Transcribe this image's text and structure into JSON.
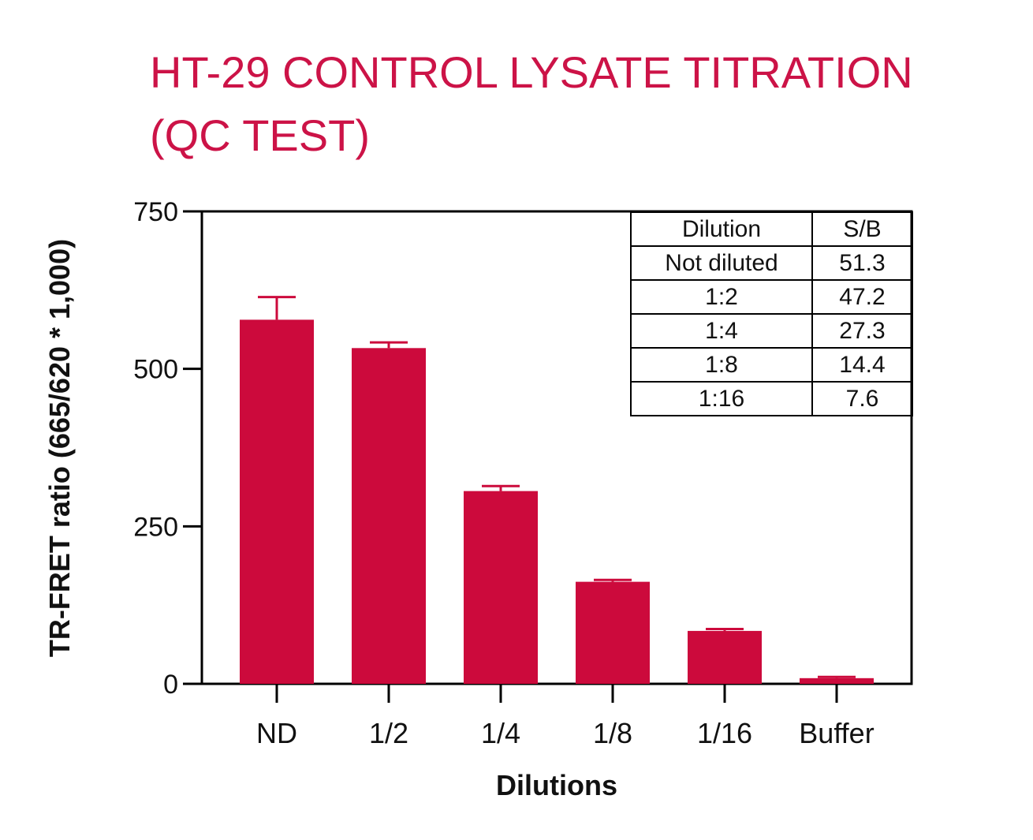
{
  "title_lines": [
    "HT-29 CONTROL LYSATE TITRATION",
    "(QC TEST)"
  ],
  "chart_data": {
    "type": "bar",
    "title": "HT-29 CONTROL LYSATE TITRATION (QC TEST)",
    "xlabel": "Dilutions",
    "ylabel": "TR-FRET ratio (665/620 * 1,000)",
    "ylim": [
      0,
      750
    ],
    "yticks": [
      0,
      250,
      500,
      750
    ],
    "categories": [
      "ND",
      "1/2",
      "1/4",
      "1/8",
      "1/16",
      "Buffer"
    ],
    "values": [
      578,
      533,
      306,
      162,
      84,
      9
    ],
    "error_upper": [
      614,
      542,
      314,
      165,
      87,
      11
    ],
    "color": "#cc0a3c",
    "grid": false,
    "legend": "none"
  },
  "sb_table": {
    "headers": [
      "Dilution",
      "S/B"
    ],
    "rows": [
      [
        "Not diluted",
        "51.3"
      ],
      [
        "1:2",
        "47.2"
      ],
      [
        "1:4",
        "27.3"
      ],
      [
        "1:8",
        "14.4"
      ],
      [
        "1:16",
        "7.6"
      ]
    ]
  }
}
